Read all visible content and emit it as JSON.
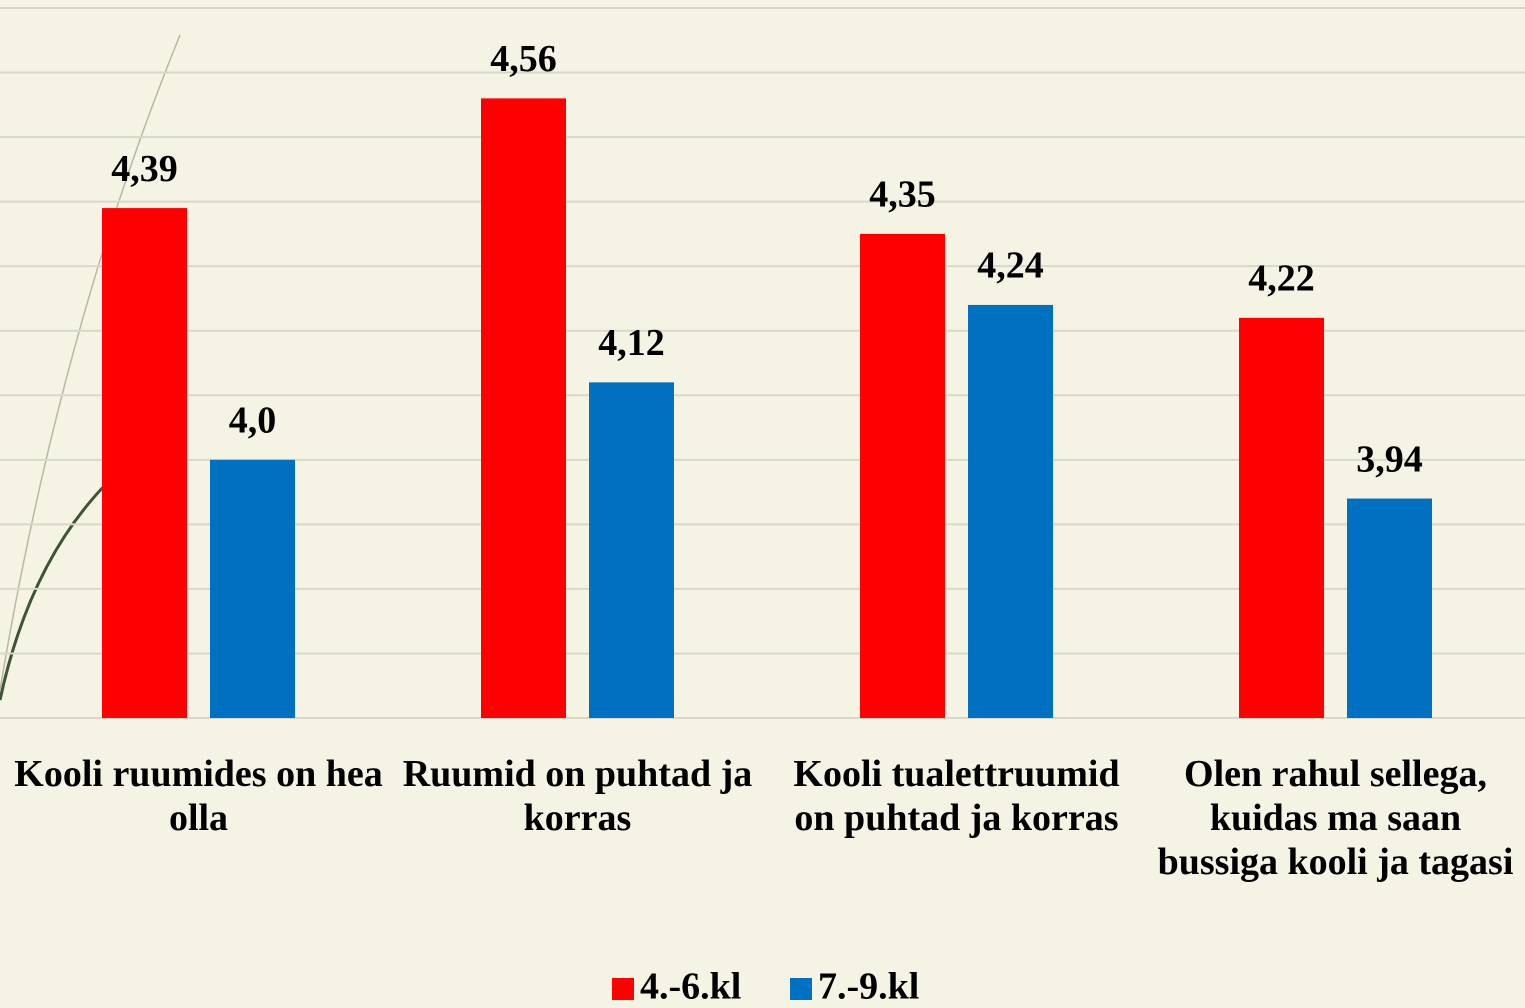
{
  "chart_data": {
    "type": "bar",
    "categories": [
      "Kooli ruumides on hea olla",
      "Ruumid on puhtad ja korras",
      "Kooli tualettruumid on puhtad ja korras",
      "Olen rahul sellega, kuidas ma saan bussiga kooli ja tagasi"
    ],
    "series": [
      {
        "name": "4.-6.kl",
        "color": "#ff0000",
        "values": [
          4.39,
          4.56,
          4.35,
          4.22
        ],
        "value_labels": [
          "4,39",
          "4,56",
          "4,35",
          "4,22"
        ]
      },
      {
        "name": "7.-9.kl",
        "color": "#0070c0",
        "values": [
          4.0,
          4.12,
          4.24,
          3.94
        ],
        "value_labels": [
          "4,0",
          "4,12",
          "4,24",
          "3,94"
        ]
      }
    ],
    "ylim": [
      3.6,
      4.7
    ],
    "yticks": [
      3.6,
      3.7,
      3.8,
      3.9,
      4.0,
      4.1,
      4.2,
      4.3,
      4.4,
      4.5,
      4.6,
      4.7
    ],
    "grid": true,
    "legend": "bottom"
  }
}
